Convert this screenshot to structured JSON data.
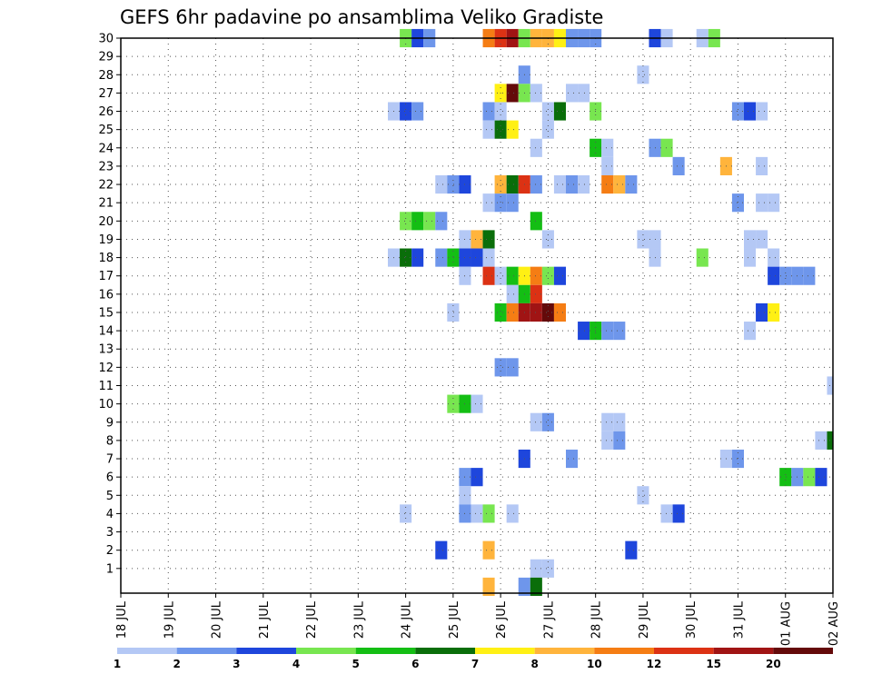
{
  "chart_data": {
    "type": "heatmap",
    "title": "GEFS 6hr padavine po ansamblima Veliko Gradiste",
    "x_ticks": [
      "18 JUL",
      "19 JUL",
      "20 JUL",
      "21 JUL",
      "22 JUL",
      "23 JUL",
      "24 JUL",
      "25 JUL",
      "26 JUL",
      "27 JUL",
      "28 JUL",
      "29 JUL",
      "30 JUL",
      "31 JUL",
      "01 AUG",
      "02 AUG"
    ],
    "y_ticks": [
      "1",
      "2",
      "3",
      "4",
      "5",
      "6",
      "7",
      "8",
      "9",
      "10",
      "11",
      "12",
      "13",
      "14",
      "15",
      "16",
      "17",
      "18",
      "19",
      "20",
      "21",
      "22",
      "23",
      "24",
      "25",
      "26",
      "27",
      "28",
      "29",
      "30"
    ],
    "y_range": [
      0,
      30
    ],
    "x_range_steps": [
      0,
      60
    ],
    "grid": true,
    "legend_position": "bottom",
    "legend_labels": [
      "1",
      "2",
      "3",
      "4",
      "5",
      "6",
      "7",
      "8",
      "10",
      "12",
      "15",
      "20"
    ],
    "legend_colors": [
      "#b4c8f5",
      "#6e96eb",
      "#1e46dc",
      "#78e650",
      "#14be14",
      "#0a6e0a",
      "#fff014",
      "#ffb43c",
      "#f57d14",
      "#dc3214",
      "#a01414",
      "#640a0a"
    ],
    "value_classes": [
      "1-2 mm",
      "2-3 mm",
      "3-4 mm",
      "4-5 mm",
      "5-6 mm",
      "6-7 mm",
      "7-8 mm",
      "8-10 mm",
      "10-12 mm",
      "12-15 mm",
      "15-20 mm",
      ">20 mm"
    ],
    "cells": [
      [
        30,
        24,
        3
      ],
      [
        30,
        25,
        2
      ],
      [
        30,
        26,
        1
      ],
      [
        30,
        31,
        8
      ],
      [
        30,
        32,
        9
      ],
      [
        30,
        33,
        10
      ],
      [
        30,
        34,
        3
      ],
      [
        30,
        35,
        7
      ],
      [
        30,
        36,
        7
      ],
      [
        30,
        37,
        6
      ],
      [
        30,
        38,
        1
      ],
      [
        30,
        39,
        1
      ],
      [
        30,
        40,
        1
      ],
      [
        30,
        45,
        2
      ],
      [
        30,
        46,
        0
      ],
      [
        30,
        49,
        0
      ],
      [
        30,
        50,
        3
      ],
      [
        28,
        34,
        1
      ],
      [
        28,
        44,
        0
      ],
      [
        27,
        32,
        6
      ],
      [
        27,
        33,
        11
      ],
      [
        27,
        34,
        3
      ],
      [
        27,
        35,
        0
      ],
      [
        27,
        38,
        0
      ],
      [
        27,
        39,
        0
      ],
      [
        26,
        23,
        0
      ],
      [
        26,
        24,
        2
      ],
      [
        26,
        25,
        1
      ],
      [
        26,
        31,
        1
      ],
      [
        26,
        32,
        0
      ],
      [
        26,
        36,
        0
      ],
      [
        26,
        37,
        5
      ],
      [
        26,
        40,
        3
      ],
      [
        26,
        52,
        1
      ],
      [
        26,
        53,
        2
      ],
      [
        26,
        54,
        0
      ],
      [
        25,
        31,
        0
      ],
      [
        25,
        32,
        5
      ],
      [
        25,
        33,
        6
      ],
      [
        25,
        36,
        0
      ],
      [
        24,
        35,
        0
      ],
      [
        24,
        40,
        4
      ],
      [
        24,
        41,
        0
      ],
      [
        24,
        45,
        1
      ],
      [
        24,
        46,
        3
      ],
      [
        23,
        41,
        0
      ],
      [
        23,
        47,
        1
      ],
      [
        23,
        51,
        7
      ],
      [
        23,
        54,
        0
      ],
      [
        22,
        27,
        0
      ],
      [
        22,
        28,
        1
      ],
      [
        22,
        29,
        2
      ],
      [
        22,
        32,
        7
      ],
      [
        22,
        33,
        5
      ],
      [
        22,
        34,
        9
      ],
      [
        22,
        35,
        1
      ],
      [
        22,
        37,
        0
      ],
      [
        22,
        38,
        1
      ],
      [
        22,
        39,
        0
      ],
      [
        22,
        41,
        8
      ],
      [
        22,
        42,
        7
      ],
      [
        22,
        43,
        1
      ],
      [
        21,
        31,
        0
      ],
      [
        21,
        32,
        1
      ],
      [
        21,
        33,
        1
      ],
      [
        21,
        52,
        1
      ],
      [
        21,
        54,
        0
      ],
      [
        21,
        55,
        0
      ],
      [
        20,
        24,
        3
      ],
      [
        20,
        25,
        4
      ],
      [
        20,
        26,
        3
      ],
      [
        20,
        27,
        1
      ],
      [
        20,
        35,
        4
      ],
      [
        19,
        29,
        0
      ],
      [
        19,
        30,
        7
      ],
      [
        19,
        31,
        5
      ],
      [
        19,
        36,
        0
      ],
      [
        19,
        44,
        0
      ],
      [
        19,
        45,
        0
      ],
      [
        19,
        53,
        0
      ],
      [
        19,
        54,
        0
      ],
      [
        18,
        23,
        0
      ],
      [
        18,
        24,
        5
      ],
      [
        18,
        25,
        2
      ],
      [
        18,
        27,
        1
      ],
      [
        18,
        28,
        4
      ],
      [
        18,
        29,
        2
      ],
      [
        18,
        30,
        2
      ],
      [
        18,
        31,
        0
      ],
      [
        18,
        45,
        0
      ],
      [
        18,
        49,
        3
      ],
      [
        18,
        53,
        0
      ],
      [
        18,
        55,
        0
      ],
      [
        17,
        29,
        0
      ],
      [
        17,
        31,
        9
      ],
      [
        17,
        32,
        0
      ],
      [
        17,
        33,
        4
      ],
      [
        17,
        34,
        6
      ],
      [
        17,
        35,
        8
      ],
      [
        17,
        36,
        3
      ],
      [
        17,
        37,
        2
      ],
      [
        17,
        55,
        2
      ],
      [
        17,
        56,
        1
      ],
      [
        17,
        57,
        1
      ],
      [
        17,
        58,
        1
      ],
      [
        16,
        33,
        0
      ],
      [
        16,
        34,
        4
      ],
      [
        16,
        35,
        9
      ],
      [
        15,
        28,
        0
      ],
      [
        15,
        32,
        4
      ],
      [
        15,
        33,
        8
      ],
      [
        15,
        34,
        10
      ],
      [
        15,
        35,
        10
      ],
      [
        15,
        36,
        11
      ],
      [
        15,
        37,
        8
      ],
      [
        15,
        54,
        2
      ],
      [
        15,
        55,
        6
      ],
      [
        14,
        39,
        2
      ],
      [
        14,
        40,
        4
      ],
      [
        14,
        41,
        1
      ],
      [
        14,
        42,
        1
      ],
      [
        14,
        53,
        0
      ],
      [
        12,
        32,
        1
      ],
      [
        12,
        33,
        1
      ],
      [
        11,
        60,
        0
      ],
      [
        10,
        28,
        3
      ],
      [
        10,
        29,
        4
      ],
      [
        10,
        30,
        0
      ],
      [
        9,
        35,
        0
      ],
      [
        9,
        36,
        1
      ],
      [
        9,
        41,
        0
      ],
      [
        9,
        42,
        0
      ],
      [
        8,
        41,
        0
      ],
      [
        8,
        42,
        1
      ],
      [
        8,
        59,
        0
      ],
      [
        8,
        60,
        5
      ],
      [
        7,
        34,
        2
      ],
      [
        7,
        38,
        1
      ],
      [
        7,
        51,
        0
      ],
      [
        7,
        52,
        1
      ],
      [
        6,
        29,
        1
      ],
      [
        6,
        30,
        2
      ],
      [
        6,
        56,
        4
      ],
      [
        6,
        57,
        1
      ],
      [
        6,
        58,
        3
      ],
      [
        6,
        59,
        2
      ],
      [
        5,
        29,
        0
      ],
      [
        5,
        44,
        0
      ],
      [
        4,
        24,
        0
      ],
      [
        4,
        29,
        1
      ],
      [
        4,
        30,
        0
      ],
      [
        4,
        31,
        3
      ],
      [
        4,
        33,
        0
      ],
      [
        4,
        46,
        0
      ],
      [
        4,
        47,
        2
      ],
      [
        2,
        27,
        2
      ],
      [
        2,
        31,
        7
      ],
      [
        2,
        43,
        2
      ],
      [
        1,
        35,
        0
      ],
      [
        1,
        36,
        0
      ],
      [
        0,
        31,
        7
      ],
      [
        0,
        34,
        1
      ],
      [
        0,
        35,
        5
      ]
    ]
  }
}
